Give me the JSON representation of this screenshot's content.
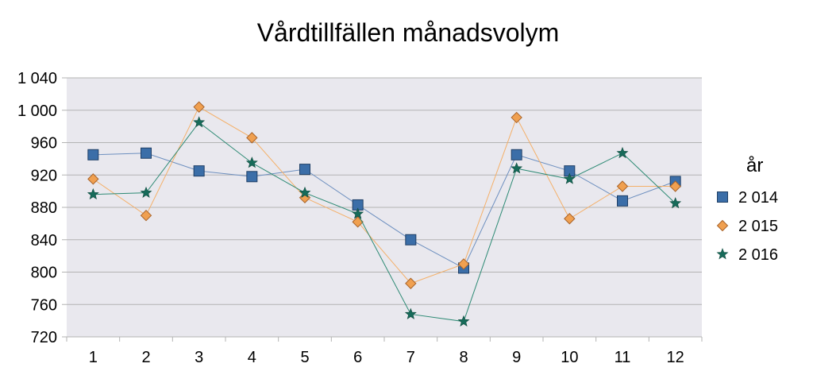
{
  "chart_data": {
    "type": "line",
    "title": "Vårdtillfällen månadsvolym",
    "xlabel": "",
    "ylabel": "",
    "categories": [
      "1",
      "2",
      "3",
      "4",
      "5",
      "6",
      "7",
      "8",
      "9",
      "10",
      "11",
      "12"
    ],
    "ylim": [
      720,
      1040
    ],
    "yticks": [
      720,
      760,
      800,
      840,
      880,
      920,
      960,
      1000,
      1040
    ],
    "ytick_labels": [
      "720",
      "760",
      "800",
      "840",
      "880",
      "920",
      "960",
      "1 000",
      "1 040"
    ],
    "grid": true,
    "legend": {
      "title": "år",
      "placement": "right"
    },
    "series": [
      {
        "name": "2 014",
        "marker": "square",
        "color": "#3b6ea8",
        "line_color": "#6d8fbf",
        "values": [
          945,
          947,
          925,
          918,
          927,
          883,
          840,
          805,
          945,
          925,
          888,
          912
        ]
      },
      {
        "name": "2 015",
        "marker": "diamond",
        "color": "#f0a050",
        "line_color": "#f4b06a",
        "values": [
          915,
          870,
          1004,
          966,
          892,
          862,
          786,
          810,
          991,
          866,
          906,
          906
        ]
      },
      {
        "name": "2 016",
        "marker": "star",
        "color": "#176b5a",
        "line_color": "#2d8a74",
        "values": [
          896,
          898,
          985,
          935,
          898,
          872,
          748,
          739,
          928,
          915,
          947,
          885
        ]
      }
    ]
  }
}
